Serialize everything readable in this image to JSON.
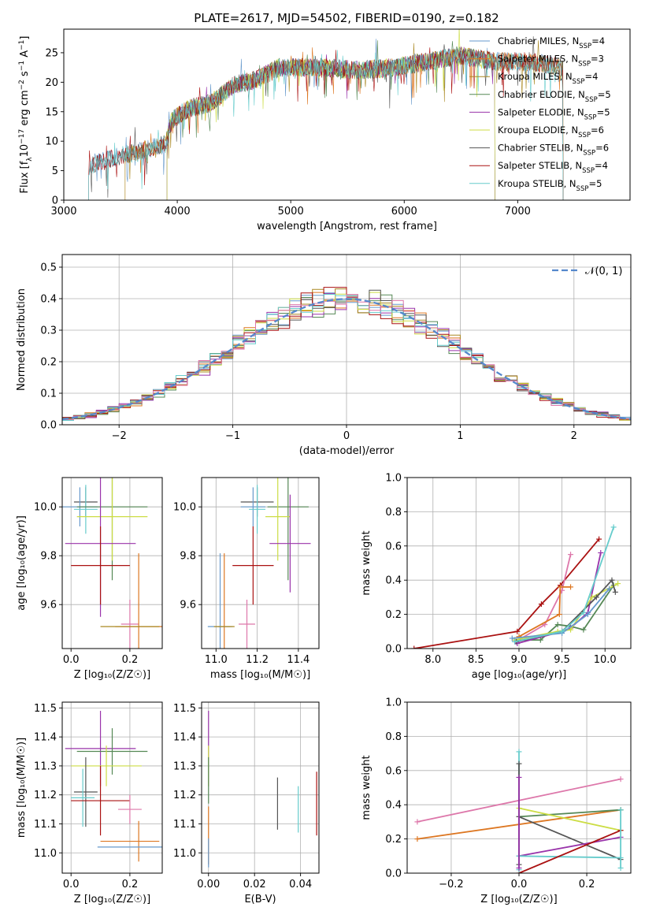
{
  "title": "PLATE=2617, MJD=54502, FIBERID=0190, z=0.182",
  "colors": {
    "Chabrier MILES": "#6699cc",
    "Salpeter MILES": "#dd7722",
    "Kroupa MILES": "#aa8822",
    "Chabrier ELODIE": "#558855",
    "Salpeter ELODIE": "#9933aa",
    "Kroupa ELODIE": "#ccdd44",
    "Chabrier STELIB": "#555555",
    "Salpeter STELIB": "#aa1111",
    "Kroupa STELIB": "#66cccc",
    "pink": "#dd77aa",
    "gaussian": "#5588cc"
  },
  "chart_data": [
    {
      "id": "spectrum",
      "type": "line",
      "xlabel": "wavelength [Angstrom, rest frame]",
      "ylabel_parts": [
        "Flux [f",
        "λ",
        "10",
        "−17",
        " erg cm",
        "−2",
        " s",
        "−1",
        " A",
        "−1",
        "]"
      ],
      "xlim": [
        3000,
        7990
      ],
      "ylim": [
        0,
        29
      ],
      "xticks": [
        3000,
        4000,
        5000,
        6000,
        7000
      ],
      "yticks": [
        0,
        5,
        10,
        15,
        20,
        25
      ],
      "grid": false,
      "legend_placement": "right",
      "legend": [
        {
          "label": "Chabrier MILES, N",
          "sub": "SSP",
          "suffix": "=4",
          "color": "Chabrier MILES"
        },
        {
          "label": "Salpeter MILES, N",
          "sub": "SSP",
          "suffix": "=3",
          "color": "Salpeter MILES"
        },
        {
          "label": "Kroupa MILES, N",
          "sub": "SSP",
          "suffix": "=4",
          "color": "Kroupa MILES"
        },
        {
          "label": "Chabrier ELODIE, N",
          "sub": "SSP",
          "suffix": "=5",
          "color": "Chabrier ELODIE"
        },
        {
          "label": "Salpeter ELODIE, N",
          "sub": "SSP",
          "suffix": "=5",
          "color": "Salpeter ELODIE"
        },
        {
          "label": "Kroupa ELODIE, N",
          "sub": "SSP",
          "suffix": "=6",
          "color": "Kroupa ELODIE"
        },
        {
          "label": "Chabrier STELIB, N",
          "sub": "SSP",
          "suffix": "=6",
          "color": "Chabrier STELIB"
        },
        {
          "label": "Salpeter STELIB, N",
          "sub": "SSP",
          "suffix": "=4",
          "color": "Salpeter STELIB"
        },
        {
          "label": "Kroupa STELIB, N",
          "sub": "SSP",
          "suffix": "=5",
          "color": "Kroupa STELIB"
        }
      ],
      "series_ranges": [
        {
          "color": "Chabrier MILES",
          "x": [
            3220,
            7400
          ]
        },
        {
          "color": "Salpeter MILES",
          "x": [
            3540,
            7400
          ]
        },
        {
          "color": "Kroupa MILES",
          "x": [
            3540,
            7400
          ]
        },
        {
          "color": "Chabrier ELODIE",
          "x": [
            3910,
            6800
          ]
        },
        {
          "color": "Salpeter ELODIE",
          "x": [
            3910,
            6800
          ]
        },
        {
          "color": "Kroupa ELODIE",
          "x": [
            3910,
            6800
          ]
        },
        {
          "color": "Chabrier STELIB",
          "x": [
            3220,
            7400
          ]
        },
        {
          "color": "Salpeter STELIB",
          "x": [
            3220,
            7400
          ]
        },
        {
          "color": "Kroupa STELIB",
          "x": [
            3220,
            7400
          ]
        }
      ],
      "continuum": [
        [
          3220,
          5.8
        ],
        [
          3500,
          7.5
        ],
        [
          3700,
          8.5
        ],
        [
          3900,
          9.5
        ],
        [
          3950,
          13.5
        ],
        [
          4100,
          15.5
        ],
        [
          4300,
          16.5
        ],
        [
          4500,
          19.5
        ],
        [
          4700,
          20.5
        ],
        [
          4900,
          22.5
        ],
        [
          5100,
          22.5
        ],
        [
          5300,
          22.5
        ],
        [
          5600,
          22.0
        ],
        [
          5900,
          22.5
        ],
        [
          6200,
          23.5
        ],
        [
          6500,
          24.5
        ],
        [
          6800,
          23.5
        ],
        [
          7100,
          23.5
        ],
        [
          7400,
          22.5
        ]
      ]
    },
    {
      "id": "residuals",
      "type": "bar",
      "xlabel": "(data-model)/error",
      "ylabel": "Normed distribution",
      "xlim": [
        -2.5,
        2.5
      ],
      "ylim": [
        0,
        0.54
      ],
      "xticks": [
        -2,
        -1,
        0,
        1,
        2
      ],
      "xticklabels": [
        "−2",
        "−1",
        "0",
        "1",
        "2"
      ],
      "yticks": [
        0.0,
        0.1,
        0.2,
        0.3,
        0.4,
        0.5
      ],
      "grid": true,
      "legend_placement": "top-right",
      "legend": [
        {
          "label": "𝒩(0, 1)",
          "color": "gaussian",
          "style": "dashed"
        }
      ],
      "bin_width": 0.1,
      "bin_range": [
        -2.5,
        2.5
      ],
      "series_colors": [
        "Chabrier MILES",
        "Salpeter MILES",
        "Kroupa MILES",
        "Chabrier ELODIE",
        "Salpeter ELODIE",
        "Kroupa ELODIE",
        "Chabrier STELIB",
        "Salpeter STELIB",
        "Kroupa STELIB",
        "pink"
      ]
    },
    {
      "id": "age-vs-Z",
      "type": "scatter",
      "xlabel": "Z [log₁₀(Z/Z☉)]",
      "ylabel": "age  [log₁₀(age/yr)]",
      "xlim": [
        -0.03,
        0.31
      ],
      "ylim": [
        9.42,
        10.12
      ],
      "xticks": [
        0.0,
        0.2
      ],
      "yticks": [
        9.6,
        9.8,
        10.0
      ],
      "grid": true,
      "points": [
        {
          "color": "Chabrier STELIB",
          "x": 0.05,
          "y": 10.02,
          "xerr": 0.04,
          "yerr": 0.06
        },
        {
          "color": "Chabrier MILES",
          "x": 0.03,
          "y": 10.0,
          "xerr": 0.06,
          "yerr": 0.08
        },
        {
          "color": "Kroupa STELIB",
          "x": 0.05,
          "y": 9.99,
          "xerr": 0.04,
          "yerr": 0.1
        },
        {
          "color": "Chabrier ELODIE",
          "x": 0.14,
          "y": 10.0,
          "xerr": 0.12,
          "yerr": 0.3
        },
        {
          "color": "Kroupa ELODIE",
          "x": 0.14,
          "y": 9.96,
          "xerr": 0.12,
          "yerr": 0.18
        },
        {
          "color": "Salpeter ELODIE",
          "x": 0.1,
          "y": 9.85,
          "xerr": 0.12,
          "yerr": 0.3
        },
        {
          "color": "Salpeter STELIB",
          "x": 0.1,
          "y": 9.76,
          "xerr": 0.1,
          "yerr": 0.16
        },
        {
          "color": "pink",
          "x": 0.2,
          "y": 9.52,
          "xerr": 0.03,
          "yerr": 0.1
        },
        {
          "color": "Salpeter MILES",
          "x": 0.23,
          "y": 9.51,
          "xerr": 0.08,
          "yerr": 0.3
        },
        {
          "color": "Kroupa MILES",
          "x": 0.2,
          "y": 9.51,
          "xerr": 0.1,
          "yerr": 0.0
        }
      ]
    },
    {
      "id": "age-vs-mass",
      "type": "scatter",
      "xlabel": "mass [log₁₀(M/M☉)]",
      "ylabel": "",
      "xlim": [
        10.93,
        11.5
      ],
      "ylim": [
        9.42,
        10.12
      ],
      "xticks": [
        11.0,
        11.2,
        11.4
      ],
      "yticks": [
        9.6,
        9.8,
        10.0
      ],
      "grid": true,
      "points": [
        {
          "color": "Chabrier STELIB",
          "x": 11.2,
          "y": 10.02,
          "xerr": 0.08,
          "yerr": 0.06
        },
        {
          "color": "Chabrier MILES",
          "x": 11.18,
          "y": 10.0,
          "xerr": 0.06,
          "yerr": 0.08
        },
        {
          "color": "Kroupa STELIB",
          "x": 11.2,
          "y": 9.99,
          "xerr": 0.04,
          "yerr": 0.1
        },
        {
          "color": "Chabrier ELODIE",
          "x": 11.35,
          "y": 10.0,
          "xerr": 0.1,
          "yerr": 0.3
        },
        {
          "color": "Kroupa ELODIE",
          "x": 11.3,
          "y": 9.96,
          "xerr": 0.06,
          "yerr": 0.18
        },
        {
          "color": "Salpeter ELODIE",
          "x": 11.36,
          "y": 9.85,
          "xerr": 0.1,
          "yerr": 0.2
        },
        {
          "color": "Salpeter STELIB",
          "x": 11.18,
          "y": 9.76,
          "xerr": 0.1,
          "yerr": 0.16
        },
        {
          "color": "pink",
          "x": 11.15,
          "y": 9.52,
          "xerr": 0.04,
          "yerr": 0.1
        },
        {
          "color": "Salpeter MILES",
          "x": 11.04,
          "y": 9.51,
          "xerr": 0.03,
          "yerr": 0.3
        },
        {
          "color": "Chabrier MILES",
          "x": 11.02,
          "y": 9.51,
          "xerr": 0.06,
          "yerr": 0.3
        },
        {
          "color": "Kroupa MILES",
          "x": 11.04,
          "y": 9.51,
          "xerr": 0.05,
          "yerr": 0.0
        }
      ]
    },
    {
      "id": "weight-vs-age",
      "type": "line",
      "xlabel": "age  [log₁₀(age/yr)]",
      "ylabel": "mass weight",
      "xlim": [
        7.7,
        10.3
      ],
      "ylim": [
        0,
        1.0
      ],
      "xticks": [
        8.0,
        8.5,
        9.0,
        9.5,
        10.0
      ],
      "yticks": [
        0.0,
        0.2,
        0.4,
        0.6,
        0.8,
        1.0
      ],
      "grid": true,
      "series": [
        {
          "color": "Salpeter STELIB",
          "x": [
            7.78,
            8.98,
            9.26,
            9.48,
            9.93
          ],
          "y": [
            0.0,
            0.1,
            0.26,
            0.37,
            0.64
          ]
        },
        {
          "color": "pink",
          "x": [
            8.96,
            9.3,
            9.5,
            9.6
          ],
          "y": [
            0.04,
            0.14,
            0.34,
            0.55
          ]
        },
        {
          "color": "Salpeter MILES",
          "x": [
            9.0,
            9.47,
            9.48,
            9.6
          ],
          "y": [
            0.07,
            0.2,
            0.36,
            0.36
          ]
        },
        {
          "color": "Chabrier ELODIE",
          "x": [
            8.95,
            9.25,
            9.45,
            9.6,
            9.75,
            10.1
          ],
          "y": [
            0.05,
            0.05,
            0.14,
            0.13,
            0.11,
            0.37
          ]
        },
        {
          "color": "Salpeter ELODIE",
          "x": [
            8.98,
            9.5,
            9.6,
            9.8,
            9.95
          ],
          "y": [
            0.03,
            0.1,
            0.12,
            0.21,
            0.56
          ]
        },
        {
          "color": "Kroupa ELODIE",
          "x": [
            8.95,
            9.45,
            9.6,
            9.85,
            10.15
          ],
          "y": [
            0.05,
            0.1,
            0.11,
            0.3,
            0.38
          ]
        },
        {
          "color": "Chabrier STELIB",
          "x": [
            8.97,
            9.5,
            9.9,
            10.08,
            10.12
          ],
          "y": [
            0.04,
            0.1,
            0.3,
            0.4,
            0.33
          ]
        },
        {
          "color": "Chabrier MILES",
          "x": [
            8.92,
            9.5,
            9.8,
            10.05
          ],
          "y": [
            0.06,
            0.09,
            0.2,
            0.35
          ]
        },
        {
          "color": "Kroupa STELIB",
          "x": [
            8.95,
            9.5,
            9.75,
            10.1
          ],
          "y": [
            0.04,
            0.1,
            0.21,
            0.71
          ]
        }
      ]
    },
    {
      "id": "mass-vs-Z",
      "type": "scatter",
      "xlabel": "Z [log₁₀(Z/Z☉)]",
      "ylabel": "mass [log₁₀(M/M☉)]",
      "xlim": [
        -0.03,
        0.31
      ],
      "ylim": [
        10.93,
        11.52
      ],
      "xticks": [
        0.0,
        0.2
      ],
      "yticks": [
        11.0,
        11.1,
        11.2,
        11.3,
        11.4,
        11.5
      ],
      "grid": true,
      "points": [
        {
          "color": "Salpeter ELODIE",
          "x": 0.1,
          "y": 11.36,
          "xerr": 0.12,
          "yerr": 0.13
        },
        {
          "color": "Chabrier ELODIE",
          "x": 0.14,
          "y": 11.35,
          "xerr": 0.12,
          "yerr": 0.08
        },
        {
          "color": "Kroupa ELODIE",
          "x": 0.12,
          "y": 11.3,
          "xerr": 0.12,
          "yerr": 0.07
        },
        {
          "color": "Chabrier STELIB",
          "x": 0.05,
          "y": 11.21,
          "xerr": 0.04,
          "yerr": 0.12
        },
        {
          "color": "Kroupa STELIB",
          "x": 0.04,
          "y": 11.19,
          "xerr": 0.04,
          "yerr": 0.1
        },
        {
          "color": "Salpeter STELIB",
          "x": 0.1,
          "y": 11.18,
          "xerr": 0.1,
          "yerr": 0.12
        },
        {
          "color": "pink",
          "x": 0.2,
          "y": 11.15,
          "xerr": 0.04,
          "yerr": 0.05
        },
        {
          "color": "Salpeter MILES",
          "x": 0.2,
          "y": 11.04,
          "xerr": 0.1,
          "yerr": 0.0
        },
        {
          "color": "Salpeter MILES",
          "x": 0.23,
          "y": 11.04,
          "xerr": 0.0,
          "yerr": 0.07
        },
        {
          "color": "Chabrier MILES",
          "x": 0.2,
          "y": 11.02,
          "xerr": 0.11,
          "yerr": 0.0
        }
      ]
    },
    {
      "id": "mass-vs-EBV",
      "type": "scatter",
      "xlabel": "E(B-V)",
      "ylabel": "",
      "xlim": [
        -0.003,
        0.048
      ],
      "ylim": [
        10.93,
        11.52
      ],
      "xticks": [
        0.0,
        0.02,
        0.04
      ],
      "xticklabels": [
        "0.00",
        "0.02",
        "0.04"
      ],
      "yticks": [
        11.0,
        11.1,
        11.2,
        11.3,
        11.4,
        11.5
      ],
      "grid": true,
      "points": [
        {
          "color": "Salpeter ELODIE",
          "x": 0.0,
          "y": 11.36,
          "xerr": 0.0,
          "yerr": 0.13
        },
        {
          "color": "Kroupa ELODIE",
          "x": 0.0,
          "y": 11.3,
          "xerr": 0.0,
          "yerr": 0.07
        },
        {
          "color": "Chabrier ELODIE",
          "x": 0.0,
          "y": 11.25,
          "xerr": 0.0,
          "yerr": 0.08
        },
        {
          "color": "Salpeter MILES",
          "x": 0.0,
          "y": 11.06,
          "xerr": 0.0,
          "yerr": 0.1
        },
        {
          "color": "Chabrier MILES",
          "x": 0.0,
          "y": 11.0,
          "xerr": 0.0,
          "yerr": 0.05
        },
        {
          "color": "Chabrier STELIB",
          "x": 0.03,
          "y": 11.17,
          "xerr": 0.0,
          "yerr": 0.09
        },
        {
          "color": "Kroupa STELIB",
          "x": 0.039,
          "y": 11.15,
          "xerr": 0.0,
          "yerr": 0.08
        },
        {
          "color": "Salpeter STELIB",
          "x": 0.047,
          "y": 11.17,
          "xerr": 0.0,
          "yerr": 0.11
        }
      ]
    },
    {
      "id": "weight-vs-Z",
      "type": "line",
      "xlabel": "Z [log₁₀(Z/Z☉)]",
      "ylabel": "mass weight",
      "xlim": [
        -0.33,
        0.33
      ],
      "ylim": [
        0,
        1.0
      ],
      "xticks": [
        -0.2,
        0.0,
        0.2
      ],
      "xticklabels": [
        "−0.2",
        "0.0",
        "0.2"
      ],
      "yticks": [
        0.0,
        0.2,
        0.4,
        0.6,
        0.8,
        1.0
      ],
      "grid": true,
      "series": [
        {
          "color": "pink",
          "x": [
            -0.3,
            0.3
          ],
          "y": [
            0.3,
            0.55
          ]
        },
        {
          "color": "Salpeter MILES",
          "x": [
            -0.3,
            0.3
          ],
          "y": [
            0.2,
            0.37
          ]
        },
        {
          "color": "Chabrier ELODIE",
          "x": [
            0.0,
            0.3
          ],
          "y": [
            0.33,
            0.37
          ]
        },
        {
          "color": "Kroupa ELODIE",
          "x": [
            0.0,
            0.3
          ],
          "y": [
            0.38,
            0.25
          ]
        },
        {
          "color": "Chabrier STELIB",
          "x": [
            0.0,
            0.3
          ],
          "y": [
            0.33,
            0.08
          ]
        },
        {
          "color": "Salpeter ELODIE",
          "x": [
            0.0,
            0.3
          ],
          "y": [
            0.1,
            0.21
          ]
        },
        {
          "color": "Kroupa STELIB",
          "x": [
            0.0,
            0.3
          ],
          "y": [
            0.1,
            0.09
          ]
        },
        {
          "color": "Salpeter STELIB",
          "x": [
            0.0,
            0.3
          ],
          "y": [
            0.0,
            0.25
          ]
        },
        {
          "color": "Kroupa STELIB",
          "x": [
            0.0,
            0.0
          ],
          "y": [
            0.02,
            0.71
          ]
        },
        {
          "color": "Chabrier STELIB",
          "x": [
            0.0,
            0.0
          ],
          "y": [
            0.05,
            0.64
          ]
        },
        {
          "color": "Salpeter ELODIE",
          "x": [
            0.0,
            0.0
          ],
          "y": [
            0.03,
            0.56
          ]
        },
        {
          "color": "Kroupa STELIB",
          "x": [
            0.3,
            0.3
          ],
          "y": [
            0.03,
            0.37
          ]
        }
      ]
    }
  ]
}
